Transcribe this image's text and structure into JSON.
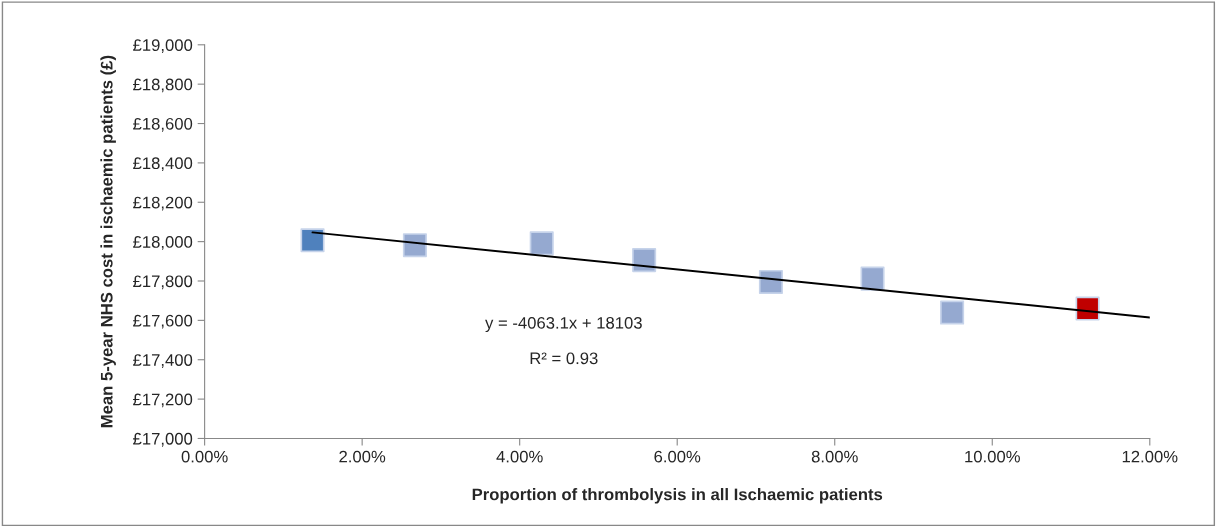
{
  "chart_data": {
    "type": "scatter",
    "xlabel": "Proportion of thrombolysis in all Ischaemic patients",
    "ylabel": "Mean 5-year NHS cost in ischaemic patients (£)",
    "x": [
      1.37,
      2.67,
      4.28,
      5.58,
      7.19,
      8.48,
      9.49,
      11.21
    ],
    "series": [
      {
        "values": [
          18007,
          17982,
          17991,
          17906,
          17795,
          17812,
          17640,
          17660
        ],
        "colors": [
          "#4f81bd",
          "#95a9d0",
          "#95a9d0",
          "#95a9d0",
          "#95a9d0",
          "#95a9d0",
          "#95a9d0",
          "#c00000"
        ]
      },
      {
        "type": "line",
        "marker": "none",
        "color": "#000000",
        "x": [
          1.37,
          12
        ],
        "values": [
          18047,
          17615
        ]
      }
    ],
    "marker": "square",
    "annotations": [
      "y = -4063.1x + 18103",
      "R² = 0.93"
    ],
    "xlim": [
      0,
      12
    ],
    "xticks": [
      {
        "value": 0,
        "label": "0.00%"
      },
      {
        "value": 2,
        "label": "2.00%"
      },
      {
        "value": 4,
        "label": "4.00%"
      },
      {
        "value": 6,
        "label": "6.00%"
      },
      {
        "value": 8,
        "label": "8.00%"
      },
      {
        "value": 10,
        "label": "10.00%"
      },
      {
        "value": 12,
        "label": "12.00%"
      }
    ],
    "ylim": [
      17000,
      19000
    ],
    "yticks": [
      {
        "value": 17000,
        "label": "£17,000"
      },
      {
        "value": 17200,
        "label": "£17,200"
      },
      {
        "value": 17400,
        "label": "£17,400"
      },
      {
        "value": 17600,
        "label": "£17,600"
      },
      {
        "value": 17800,
        "label": "£17,800"
      },
      {
        "value": 18000,
        "label": "£18,000"
      },
      {
        "value": 18200,
        "label": "£18,200"
      },
      {
        "value": 18400,
        "label": "£18,400"
      },
      {
        "value": 18600,
        "label": "£18,600"
      },
      {
        "value": 18800,
        "label": "£18,800"
      },
      {
        "value": 19000,
        "label": "£19,000"
      }
    ],
    "grid": false,
    "legend": false
  }
}
